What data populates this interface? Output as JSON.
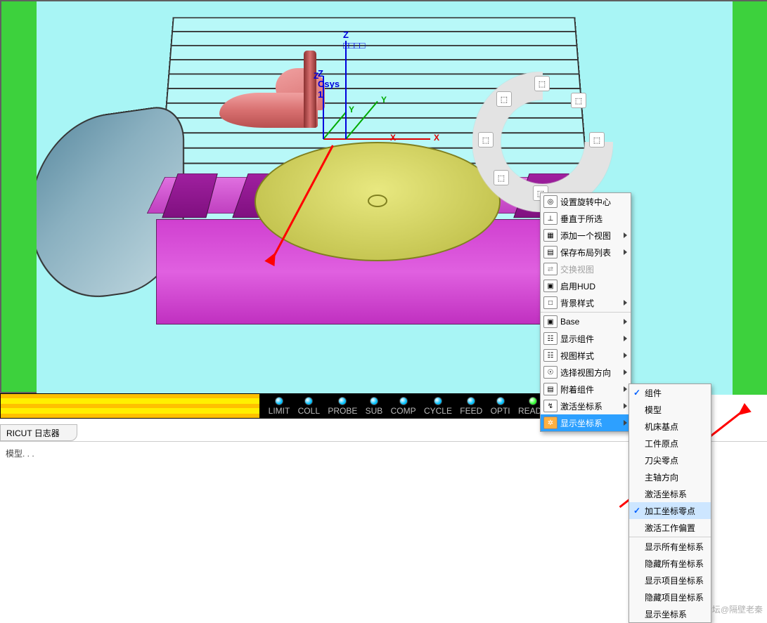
{
  "viewport": {
    "background": "#a8f5f5",
    "frame_color": "#3dd13d",
    "z_axis_label": "Z □□□□",
    "csys_label": "Z Csys 1",
    "axis_x": "X",
    "axis_y": "Y",
    "axis_z": "Z",
    "shoe_color": "#e08080",
    "table_color": "#d040d0",
    "disc_color": "#d8d860"
  },
  "ring": {
    "arc_color": "#f0f0f0",
    "icons": [
      "⬚",
      "⬚",
      "⬚",
      "⬚",
      "⬚",
      "⬚"
    ]
  },
  "status_leds": [
    {
      "label": "LIMIT",
      "color": "#00c0ff"
    },
    {
      "label": "COLL",
      "color": "#00c0ff"
    },
    {
      "label": "PROBE",
      "color": "#00c0ff"
    },
    {
      "label": "SUB",
      "color": "#00c0ff"
    },
    {
      "label": "COMP",
      "color": "#00c0ff"
    },
    {
      "label": "CYCLE",
      "color": "#00c0ff"
    },
    {
      "label": "FEED",
      "color": "#00c0ff"
    },
    {
      "label": "OPTI",
      "color": "#00c0ff"
    },
    {
      "label": "READY",
      "color": "#30ff30"
    }
  ],
  "log": {
    "tab": "RICUT 日志器",
    "line": "模型. . ."
  },
  "menu1": [
    {
      "icon": "◎",
      "label": "设置旋转中心",
      "sub": false
    },
    {
      "icon": "⊥",
      "label": "垂直于所选",
      "sub": false
    },
    {
      "icon": "▦",
      "label": "添加一个视图",
      "sub": true
    },
    {
      "icon": "▤",
      "label": "保存布局列表",
      "sub": true
    },
    {
      "icon": "⇄",
      "label": "交换视图",
      "sub": false,
      "disabled": true
    },
    {
      "icon": "▣",
      "label": "启用HUD",
      "sub": false
    },
    {
      "icon": "□",
      "label": "背景样式",
      "sub": true
    },
    {
      "sep": true
    },
    {
      "icon": "▣",
      "label": "Base",
      "sub": true
    },
    {
      "icon": "☷",
      "label": "显示组件",
      "sub": true
    },
    {
      "icon": "☷",
      "label": "视图样式",
      "sub": true
    },
    {
      "icon": "☉",
      "label": "选择视图方向",
      "sub": true
    },
    {
      "icon": "▤",
      "label": "附着组件",
      "sub": true
    },
    {
      "icon": "↯",
      "label": "激活坐标系",
      "sub": true
    },
    {
      "icon": "✲",
      "label": "显示坐标系",
      "sub": true,
      "selected": true
    }
  ],
  "menu2": [
    {
      "label": "组件",
      "checked": true
    },
    {
      "label": "模型"
    },
    {
      "label": "机床基点"
    },
    {
      "label": "工件原点"
    },
    {
      "label": "刀尖零点"
    },
    {
      "label": "主轴方向"
    },
    {
      "label": "激活坐标系"
    },
    {
      "label": "加工坐标零点",
      "checked": true,
      "hl": true
    },
    {
      "label": "激活工作偏置"
    },
    {
      "sep": true
    },
    {
      "label": "显示所有坐标系"
    },
    {
      "label": "隐藏所有坐标系"
    },
    {
      "label": "显示项目坐标系"
    },
    {
      "label": "隐藏项目坐标系"
    },
    {
      "label": "显示坐标系"
    }
  ],
  "watermark": "UG爱好者论坛@隔壁老秦"
}
